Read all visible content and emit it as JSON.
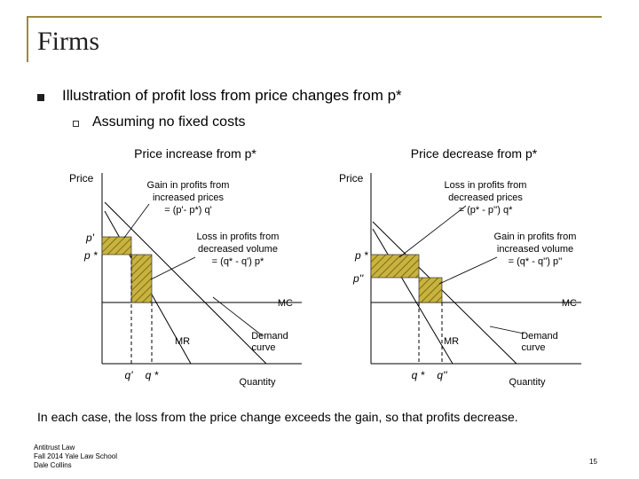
{
  "slide": {
    "title": "Firms",
    "bullet_main": "Illustration of profit loss from price changes from p*",
    "bullet_sub": "Assuming no fixed costs",
    "conclusion": "In each case, the loss from the price change exceeds the gain, so that profits decrease.",
    "footer": [
      "Antitrust Law",
      "Fall 2014  Yale Law School",
      "Dale Collins"
    ],
    "page_number": "15"
  },
  "left_panel": {
    "heading": "Price increase from p*",
    "y_axis_label": "Price",
    "x_axis_label": "Quantity",
    "price_high": "p'",
    "price_star": "p *",
    "qty_low": "q'",
    "qty_star": "q *",
    "mc": "MC",
    "mr": "MR",
    "demand_line1": "Demand",
    "demand_line2": "curve",
    "gain_callout": [
      "Gain in profits from",
      "increased prices",
      "= (p'- p*) q'"
    ],
    "loss_callout": [
      "Loss in profits from",
      "decreased volume",
      "= (q* - q') p*"
    ]
  },
  "right_panel": {
    "heading": "Price decrease from p*",
    "y_axis_label": "Price",
    "x_axis_label": "Quantity",
    "price_star": "p *",
    "price_low": "p''",
    "qty_star": "q *",
    "qty_high": "q''",
    "mc": "MC",
    "mr": "MR",
    "demand_line1": "Demand",
    "demand_line2": "curve",
    "loss_callout": [
      "Loss in profits from",
      "decreased prices",
      "= (p* - p'') q*"
    ],
    "gain_callout": [
      "Gain in profits from",
      "increased volume",
      "= (q* - q'') p''"
    ]
  },
  "colors": {
    "frame": "#9b8a3a",
    "hatch_fill": "#c9b340",
    "hatch_line": "#7d6c12"
  }
}
